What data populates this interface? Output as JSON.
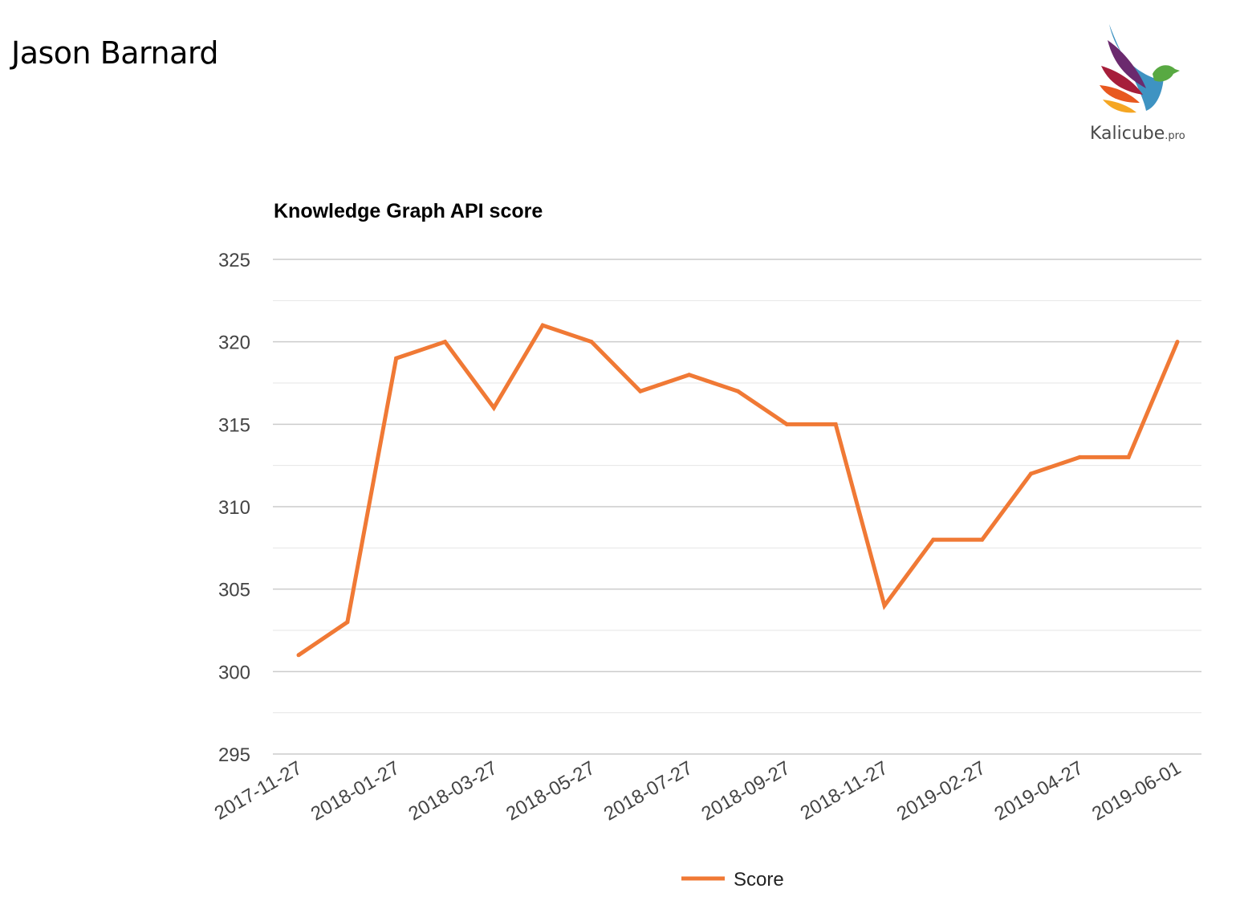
{
  "header": {
    "name": "Jason Barnard"
  },
  "logo": {
    "text": "Kalicube",
    "suffix": ".pro",
    "icon": "bird-icon"
  },
  "chart_data": {
    "type": "line",
    "title": "Knowledge Graph API score",
    "xlabel": "",
    "ylabel": "",
    "ylim": [
      295,
      325
    ],
    "yticks": [
      295,
      300,
      305,
      310,
      315,
      320,
      325
    ],
    "xtick_labels": [
      "2017-11-27",
      "2018-01-27",
      "2018-03-27",
      "2018-05-27",
      "2018-07-27",
      "2018-09-27",
      "2018-11-27",
      "2019-02-27",
      "2019-04-27",
      "2019-06-01"
    ],
    "grid": true,
    "legend_position": "bottom",
    "color": "#F07935",
    "series": [
      {
        "name": "Score",
        "values": [
          301,
          303,
          319,
          320,
          316,
          321,
          320,
          317,
          318,
          317,
          315,
          315,
          304,
          308,
          308,
          312,
          313,
          313,
          320
        ]
      }
    ]
  }
}
